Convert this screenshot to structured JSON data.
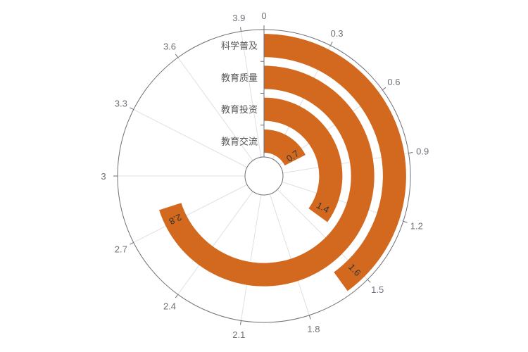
{
  "chart_data": {
    "type": "polar-bar",
    "angle_axis": {
      "min": 0,
      "max": 4.0,
      "ticks": [
        "0",
        "0.3",
        "0.6",
        "0.9",
        "1.2",
        "1.5",
        "1.8",
        "2.1",
        "2.4",
        "2.7",
        "3",
        "3.3",
        "3.6",
        "3.9"
      ],
      "tick_values": [
        0,
        0.3,
        0.6,
        0.9,
        1.2,
        1.5,
        1.8,
        2.1,
        2.4,
        2.7,
        3.0,
        3.3,
        3.6,
        3.9
      ]
    },
    "radius_axis": {
      "categories": [
        "教育交流",
        "教育投资",
        "教育质量",
        "科学普及"
      ]
    },
    "values": [
      0.7,
      1.4,
      2.8,
      1.6
    ],
    "value_labels": [
      "0.7",
      "1.4",
      "2.8",
      "1.6"
    ],
    "grid": true,
    "colors": {
      "bar": "#d2691e",
      "axis": "#6e7079",
      "grid": "#e0e0e0"
    }
  }
}
